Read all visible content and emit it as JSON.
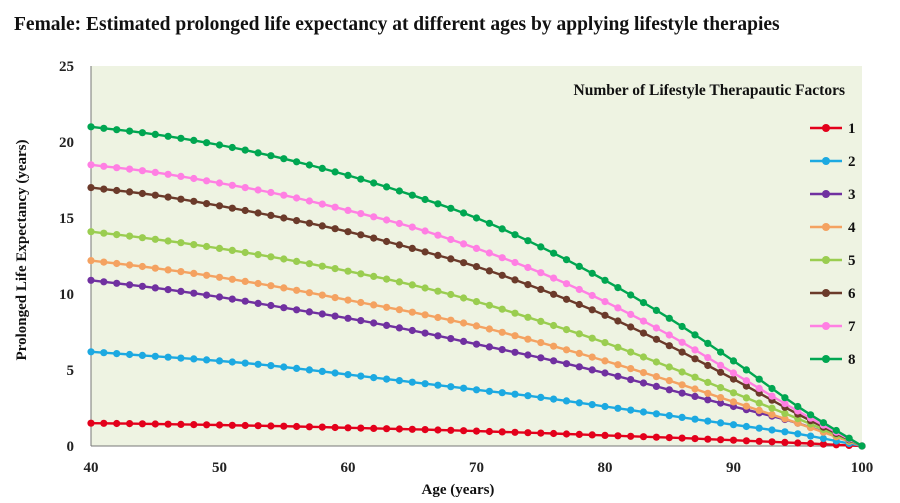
{
  "chart_data": {
    "type": "line",
    "title": "Female: Estimated prolonged life expectancy at different ages by applying lifestyle therapies",
    "xlabel": "Age (years)",
    "ylabel": "Prolonged Life Expectancy (years)",
    "xlim": [
      40,
      100
    ],
    "ylim": [
      0,
      25
    ],
    "xticks": [
      40,
      50,
      60,
      70,
      80,
      90,
      100
    ],
    "yticks": [
      0,
      5,
      10,
      15,
      20,
      25
    ],
    "grid": false,
    "legend_title": "Number of Lifestyle Therapautic Factors",
    "legend_position": "right",
    "x": [
      40,
      45,
      50,
      55,
      60,
      65,
      70,
      75,
      80,
      85,
      90,
      95,
      100
    ],
    "series": [
      {
        "name": "1",
        "color": "#e3001b",
        "values": [
          1.5,
          1.45,
          1.38,
          1.3,
          1.2,
          1.1,
          0.98,
          0.85,
          0.7,
          0.55,
          0.38,
          0.2,
          0.0
        ]
      },
      {
        "name": "2",
        "color": "#1ca9e1",
        "values": [
          6.2,
          5.9,
          5.6,
          5.2,
          4.7,
          4.2,
          3.7,
          3.2,
          2.6,
          2.0,
          1.4,
          0.8,
          0.0
        ]
      },
      {
        "name": "3",
        "color": "#7030a0",
        "values": [
          10.9,
          10.4,
          9.8,
          9.1,
          8.4,
          7.6,
          6.7,
          5.8,
          4.8,
          3.7,
          2.6,
          1.5,
          0.0
        ]
      },
      {
        "name": "4",
        "color": "#f4a261",
        "values": [
          12.2,
          11.7,
          11.1,
          10.4,
          9.6,
          8.8,
          7.9,
          6.8,
          5.6,
          4.3,
          2.9,
          1.5,
          0.0
        ]
      },
      {
        "name": "5",
        "color": "#9acd50",
        "values": [
          14.1,
          13.6,
          13.0,
          12.3,
          11.5,
          10.6,
          9.5,
          8.2,
          6.8,
          5.2,
          3.5,
          1.8,
          0.0
        ]
      },
      {
        "name": "6",
        "color": "#6b3a2a",
        "values": [
          17.0,
          16.5,
          15.8,
          15.0,
          14.1,
          13.0,
          11.8,
          10.3,
          8.6,
          6.6,
          4.4,
          2.1,
          0.0
        ]
      },
      {
        "name": "7",
        "color": "#ff7fe3",
        "values": [
          18.5,
          18.0,
          17.3,
          16.5,
          15.5,
          14.4,
          13.0,
          11.4,
          9.5,
          7.3,
          4.8,
          2.3,
          0.0
        ]
      },
      {
        "name": "8",
        "color": "#00a651",
        "values": [
          21.0,
          20.5,
          19.8,
          18.9,
          17.8,
          16.5,
          15.0,
          13.1,
          10.9,
          8.4,
          5.6,
          2.6,
          0.0
        ]
      }
    ]
  }
}
